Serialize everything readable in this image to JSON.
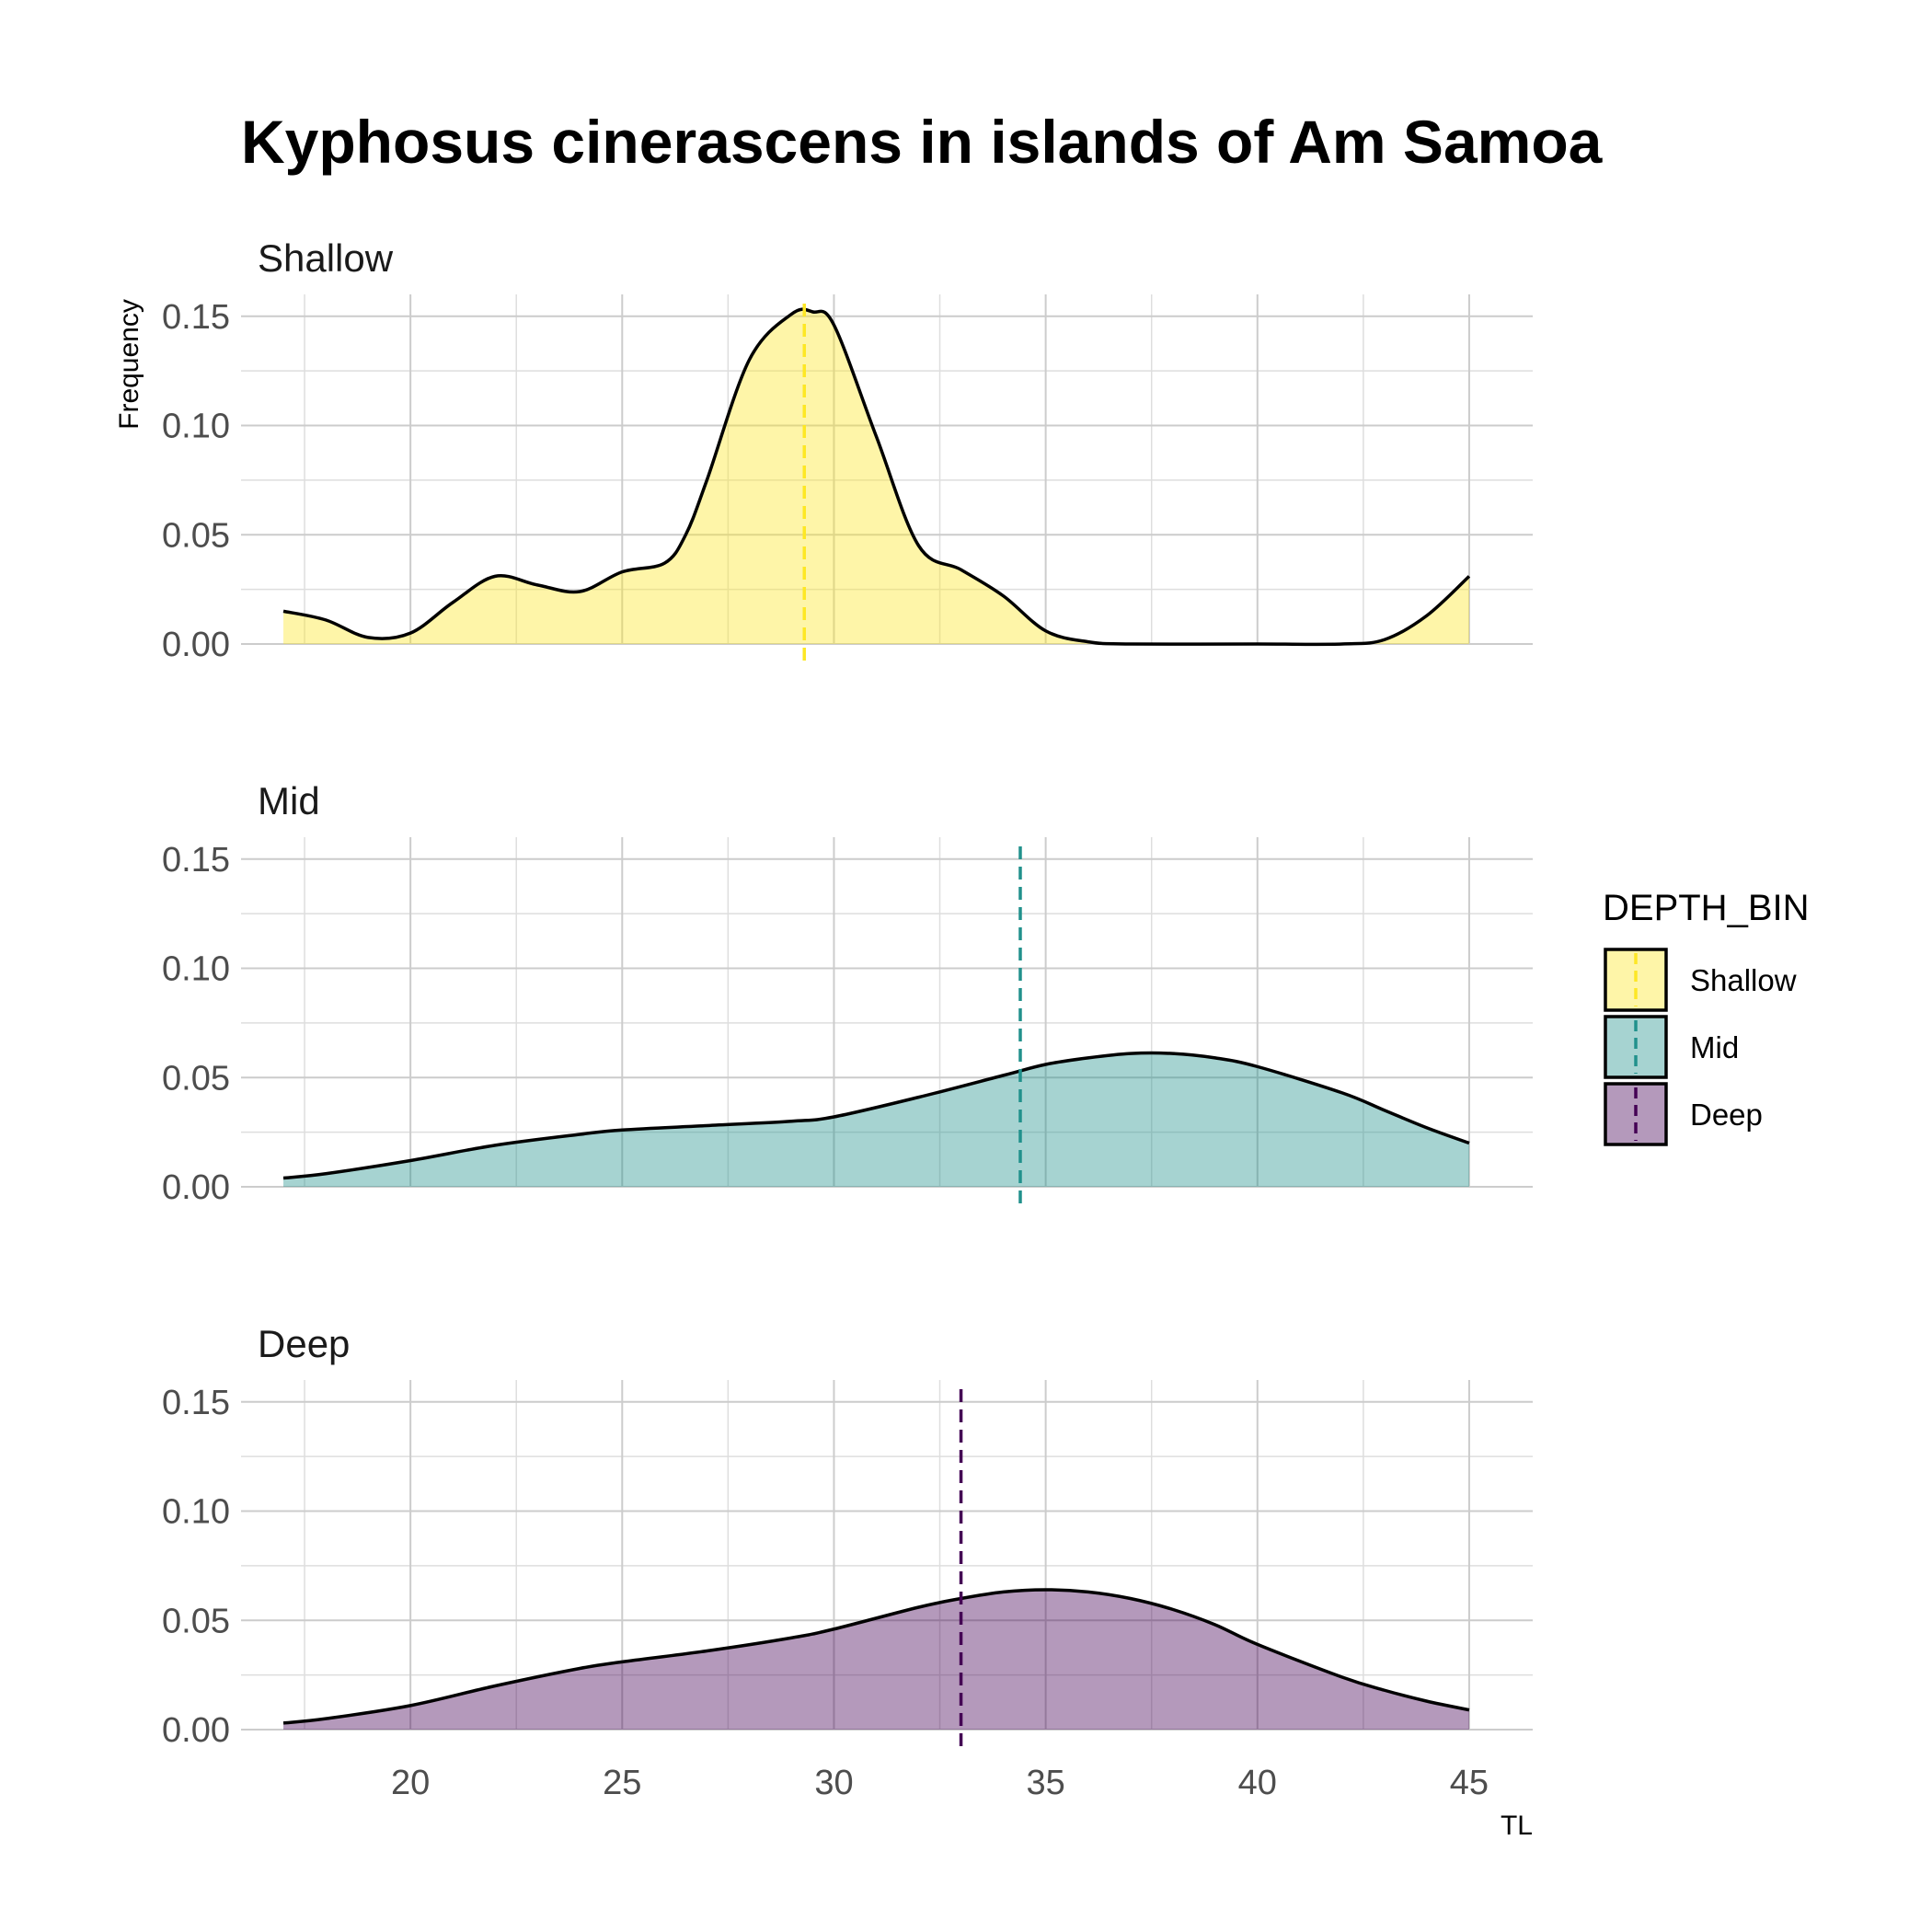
{
  "chart_data": {
    "type": "area",
    "title": "Kyphosus cinerascens in islands of Am Samoa",
    "xlabel": "TL",
    "ylabel": "Frequency",
    "xlim": [
      16,
      46.5
    ],
    "ylim": [
      0,
      0.16
    ],
    "x_ticks": [
      20,
      25,
      30,
      35,
      40,
      45
    ],
    "y_ticks": [
      0,
      0.05,
      0.1,
      0.15
    ],
    "x_tick_labels": [
      "20",
      "25",
      "30",
      "35",
      "40",
      "45"
    ],
    "y_tick_labels": [
      "0.00",
      "0.05",
      "0.10",
      "0.15"
    ],
    "grid": true,
    "legend": {
      "title": "DEPTH_BIN",
      "position": "right",
      "entries": [
        "Shallow",
        "Mid",
        "Deep"
      ]
    },
    "series": [
      {
        "name": "Shallow",
        "fill": "#FDE725",
        "mean_line": "#FDE725",
        "mean": 29.3,
        "x": [
          17,
          18,
          19,
          20,
          21,
          22,
          23,
          24,
          25,
          26,
          26.5,
          27,
          28,
          29,
          29.5,
          30,
          31,
          32,
          33,
          34,
          35,
          36,
          37,
          40,
          42,
          43,
          44,
          45
        ],
        "y": [
          0.015,
          0.011,
          0.003,
          0.005,
          0.019,
          0.031,
          0.027,
          0.024,
          0.033,
          0.037,
          0.05,
          0.075,
          0.13,
          0.151,
          0.152,
          0.146,
          0.095,
          0.045,
          0.034,
          0.022,
          0.006,
          0.001,
          0.0,
          0.0,
          0.0,
          0.002,
          0.013,
          0.031
        ]
      },
      {
        "name": "Mid",
        "fill": "#21918C",
        "mean_line": "#21918C",
        "mean": 34.4,
        "x": [
          17,
          18,
          20,
          22,
          24,
          25,
          27,
          29,
          30,
          32,
          34,
          35,
          36,
          37,
          38,
          39,
          40,
          42,
          43,
          44,
          45
        ],
        "y": [
          0.004,
          0.006,
          0.012,
          0.019,
          0.024,
          0.026,
          0.028,
          0.03,
          0.032,
          0.041,
          0.051,
          0.056,
          0.059,
          0.061,
          0.061,
          0.059,
          0.055,
          0.043,
          0.035,
          0.027,
          0.02
        ]
      },
      {
        "name": "Deep",
        "fill": "#440154",
        "mean_line": "#440154",
        "mean": 33,
        "x": [
          17,
          18,
          20,
          22,
          24,
          25,
          27,
          29,
          30,
          32,
          33,
          34,
          35,
          36,
          37,
          38,
          39,
          40,
          42,
          43,
          44,
          45
        ],
        "y": [
          0.003,
          0.005,
          0.011,
          0.02,
          0.028,
          0.031,
          0.036,
          0.042,
          0.046,
          0.056,
          0.06,
          0.063,
          0.064,
          0.063,
          0.06,
          0.055,
          0.048,
          0.039,
          0.024,
          0.018,
          0.013,
          0.009
        ]
      }
    ]
  }
}
